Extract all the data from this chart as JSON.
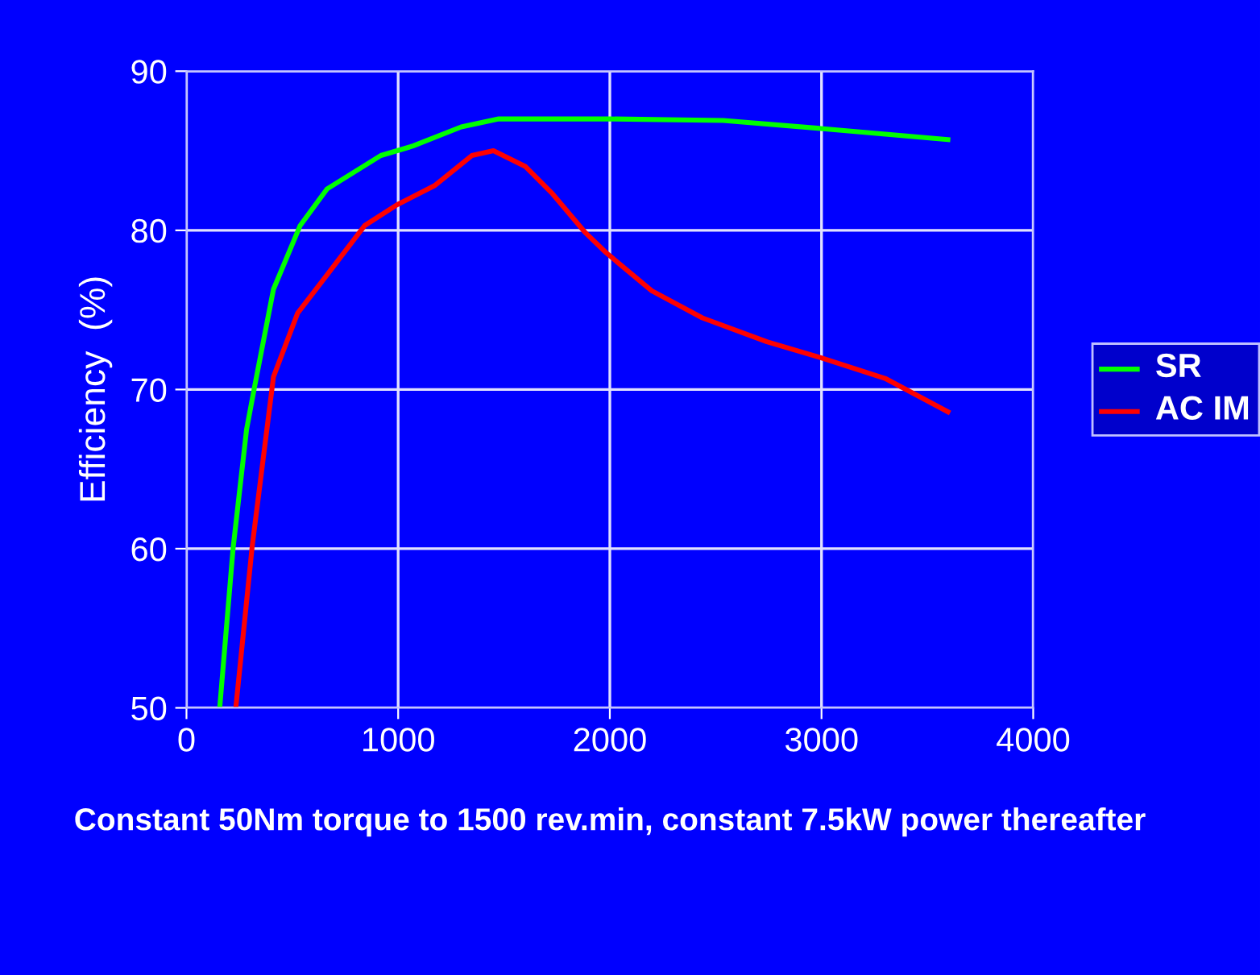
{
  "chart_data": {
    "type": "line",
    "xlabel": "Constant 50Nm torque to 1500 rev.min, constant 7.5kW power thereafter",
    "ylabel": "Efficiency  (%)",
    "xlim": [
      0,
      4000
    ],
    "xticks": [
      0,
      1000,
      2000,
      3000,
      4000
    ],
    "ylim": [
      50,
      90
    ],
    "yticks": [
      50,
      60,
      70,
      80,
      90
    ],
    "grid": true,
    "legend": "right",
    "series": [
      {
        "name": "SR",
        "color": "#00ff00",
        "x": [
          157,
          220,
          284,
          322,
          411,
          537,
          664,
          918,
          1070,
          1298,
          1475,
          2000,
          2536,
          2996,
          3597
        ],
        "values": [
          50,
          60,
          67.5,
          70.2,
          76.3,
          80.3,
          82.6,
          84.7,
          85.3,
          86.5,
          87.0,
          87.0,
          86.9,
          86.4,
          85.7
        ]
      },
      {
        "name": "AC IM",
        "color": "#ff0000",
        "x": [
          233,
          310,
          411,
          525,
          664,
          842,
          994,
          1171,
          1348,
          1450,
          1602,
          1729,
          1881,
          1982,
          2198,
          2437,
          2742,
          2996,
          3300,
          3597
        ],
        "values": [
          50,
          60.1,
          70.8,
          74.8,
          77.2,
          80.3,
          81.6,
          82.8,
          84.7,
          85.0,
          84.0,
          82.3,
          79.9,
          78.6,
          76.2,
          74.5,
          73.0,
          72.0,
          70.7,
          68.6
        ]
      }
    ]
  }
}
